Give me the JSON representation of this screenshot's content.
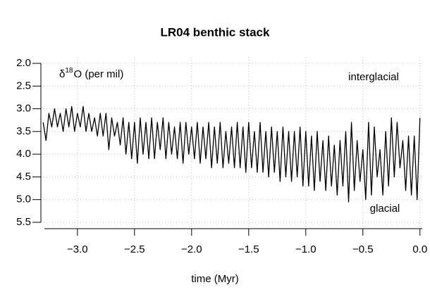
{
  "chart_data": {
    "type": "line",
    "title": "LR04 benthic stack",
    "xlabel": "time (Myr)",
    "ylabel": {
      "symbol": "δ",
      "sup": "18",
      "text": "O (per mil)"
    },
    "annotations": [
      "interglacial",
      "glacial"
    ],
    "xlim": [
      -3.32,
      0.02
    ],
    "ylim": [
      5.64,
      1.86
    ],
    "grid": true,
    "color": "#000000",
    "xticks": [
      {
        "value": -3,
        "label": "−3.0"
      },
      {
        "value": -2.5,
        "label": "−2.5"
      },
      {
        "value": -2,
        "label": "−2.0"
      },
      {
        "value": -1.5,
        "label": "−1.5"
      },
      {
        "value": -1,
        "label": "−1.0"
      },
      {
        "value": -0.5,
        "label": "−0.5"
      },
      {
        "value": 0,
        "label": "0.0"
      }
    ],
    "yticks": [
      {
        "value": 2,
        "label": "2.0"
      },
      2.5,
      {
        "value": 3,
        "label": "3.0"
      },
      3.5,
      {
        "value": 4,
        "label": "4.0"
      },
      4.5,
      {
        "value": 5,
        "label": "5.0"
      },
      5.5
    ],
    "x": [
      -3.3,
      -3.275,
      -3.25,
      -3.225,
      -3.2,
      -3.175,
      -3.15,
      -3.125,
      -3.1,
      -3.075,
      -3.05,
      -3.025,
      -3.0,
      -2.975,
      -2.95,
      -2.925,
      -2.9,
      -2.875,
      -2.85,
      -2.825,
      -2.8,
      -2.775,
      -2.75,
      -2.725,
      -2.7,
      -2.675,
      -2.65,
      -2.625,
      -2.6,
      -2.575,
      -2.55,
      -2.525,
      -2.5,
      -2.475,
      -2.45,
      -2.425,
      -2.4,
      -2.375,
      -2.35,
      -2.325,
      -2.3,
      -2.275,
      -2.25,
      -2.225,
      -2.2,
      -2.175,
      -2.15,
      -2.125,
      -2.1,
      -2.075,
      -2.05,
      -2.025,
      -2.0,
      -1.975,
      -1.95,
      -1.925,
      -1.9,
      -1.875,
      -1.85,
      -1.825,
      -1.8,
      -1.775,
      -1.75,
      -1.725,
      -1.7,
      -1.675,
      -1.65,
      -1.625,
      -1.6,
      -1.575,
      -1.55,
      -1.525,
      -1.5,
      -1.475,
      -1.45,
      -1.425,
      -1.4,
      -1.375,
      -1.35,
      -1.325,
      -1.3,
      -1.275,
      -1.25,
      -1.225,
      -1.2,
      -1.175,
      -1.15,
      -1.125,
      -1.1,
      -1.075,
      -1.05,
      -1.025,
      -1.0,
      -0.975,
      -0.95,
      -0.925,
      -0.9,
      -0.875,
      -0.85,
      -0.825,
      -0.8,
      -0.775,
      -0.75,
      -0.725,
      -0.7,
      -0.675,
      -0.65,
      -0.625,
      -0.6,
      -0.575,
      -0.55,
      -0.525,
      -0.5,
      -0.475,
      -0.45,
      -0.425,
      -0.4,
      -0.375,
      -0.35,
      -0.325,
      -0.3,
      -0.275,
      -0.25,
      -0.225,
      -0.2,
      -0.175,
      -0.15,
      -0.125,
      -0.1,
      -0.075,
      -0.05,
      -0.025,
      0.0
    ],
    "values": [
      3.3,
      3.7,
      3.1,
      3.4,
      3.0,
      3.4,
      3.1,
      3.5,
      3.0,
      3.4,
      2.95,
      3.5,
      3.1,
      3.4,
      2.95,
      3.5,
      3.1,
      3.5,
      3.2,
      3.6,
      3.1,
      3.6,
      3.1,
      3.9,
      3.2,
      3.6,
      3.3,
      3.8,
      3.2,
      4.0,
      3.3,
      4.1,
      3.3,
      4.2,
      3.2,
      4.0,
      3.3,
      4.1,
      3.2,
      4.1,
      3.3,
      3.9,
      3.2,
      4.1,
      3.3,
      4.0,
      3.4,
      4.1,
      3.3,
      4.2,
      3.3,
      4.0,
      3.4,
      4.1,
      3.3,
      4.2,
      3.4,
      4.1,
      3.3,
      4.3,
      3.4,
      4.2,
      3.3,
      4.3,
      3.5,
      4.2,
      3.4,
      4.3,
      3.3,
      4.3,
      3.4,
      4.4,
      3.3,
      4.3,
      3.5,
      4.4,
      3.3,
      4.4,
      3.5,
      4.5,
      3.4,
      4.4,
      3.5,
      4.6,
      3.4,
      4.5,
      3.5,
      4.6,
      3.5,
      4.5,
      3.4,
      4.7,
      3.5,
      4.7,
      3.6,
      4.8,
      3.5,
      4.6,
      3.7,
      4.8,
      3.6,
      4.7,
      3.8,
      4.9,
      3.7,
      4.7,
      3.5,
      5.05,
      3.3,
      4.8,
      3.7,
      4.6,
      3.9,
      5.0,
      3.3,
      4.9,
      3.4,
      4.5,
      3.9,
      4.9,
      3.5,
      4.7,
      3.2,
      4.5,
      3.3,
      4.3,
      3.7,
      4.8,
      3.6,
      4.9,
      3.6,
      5.0,
      3.2
    ]
  }
}
